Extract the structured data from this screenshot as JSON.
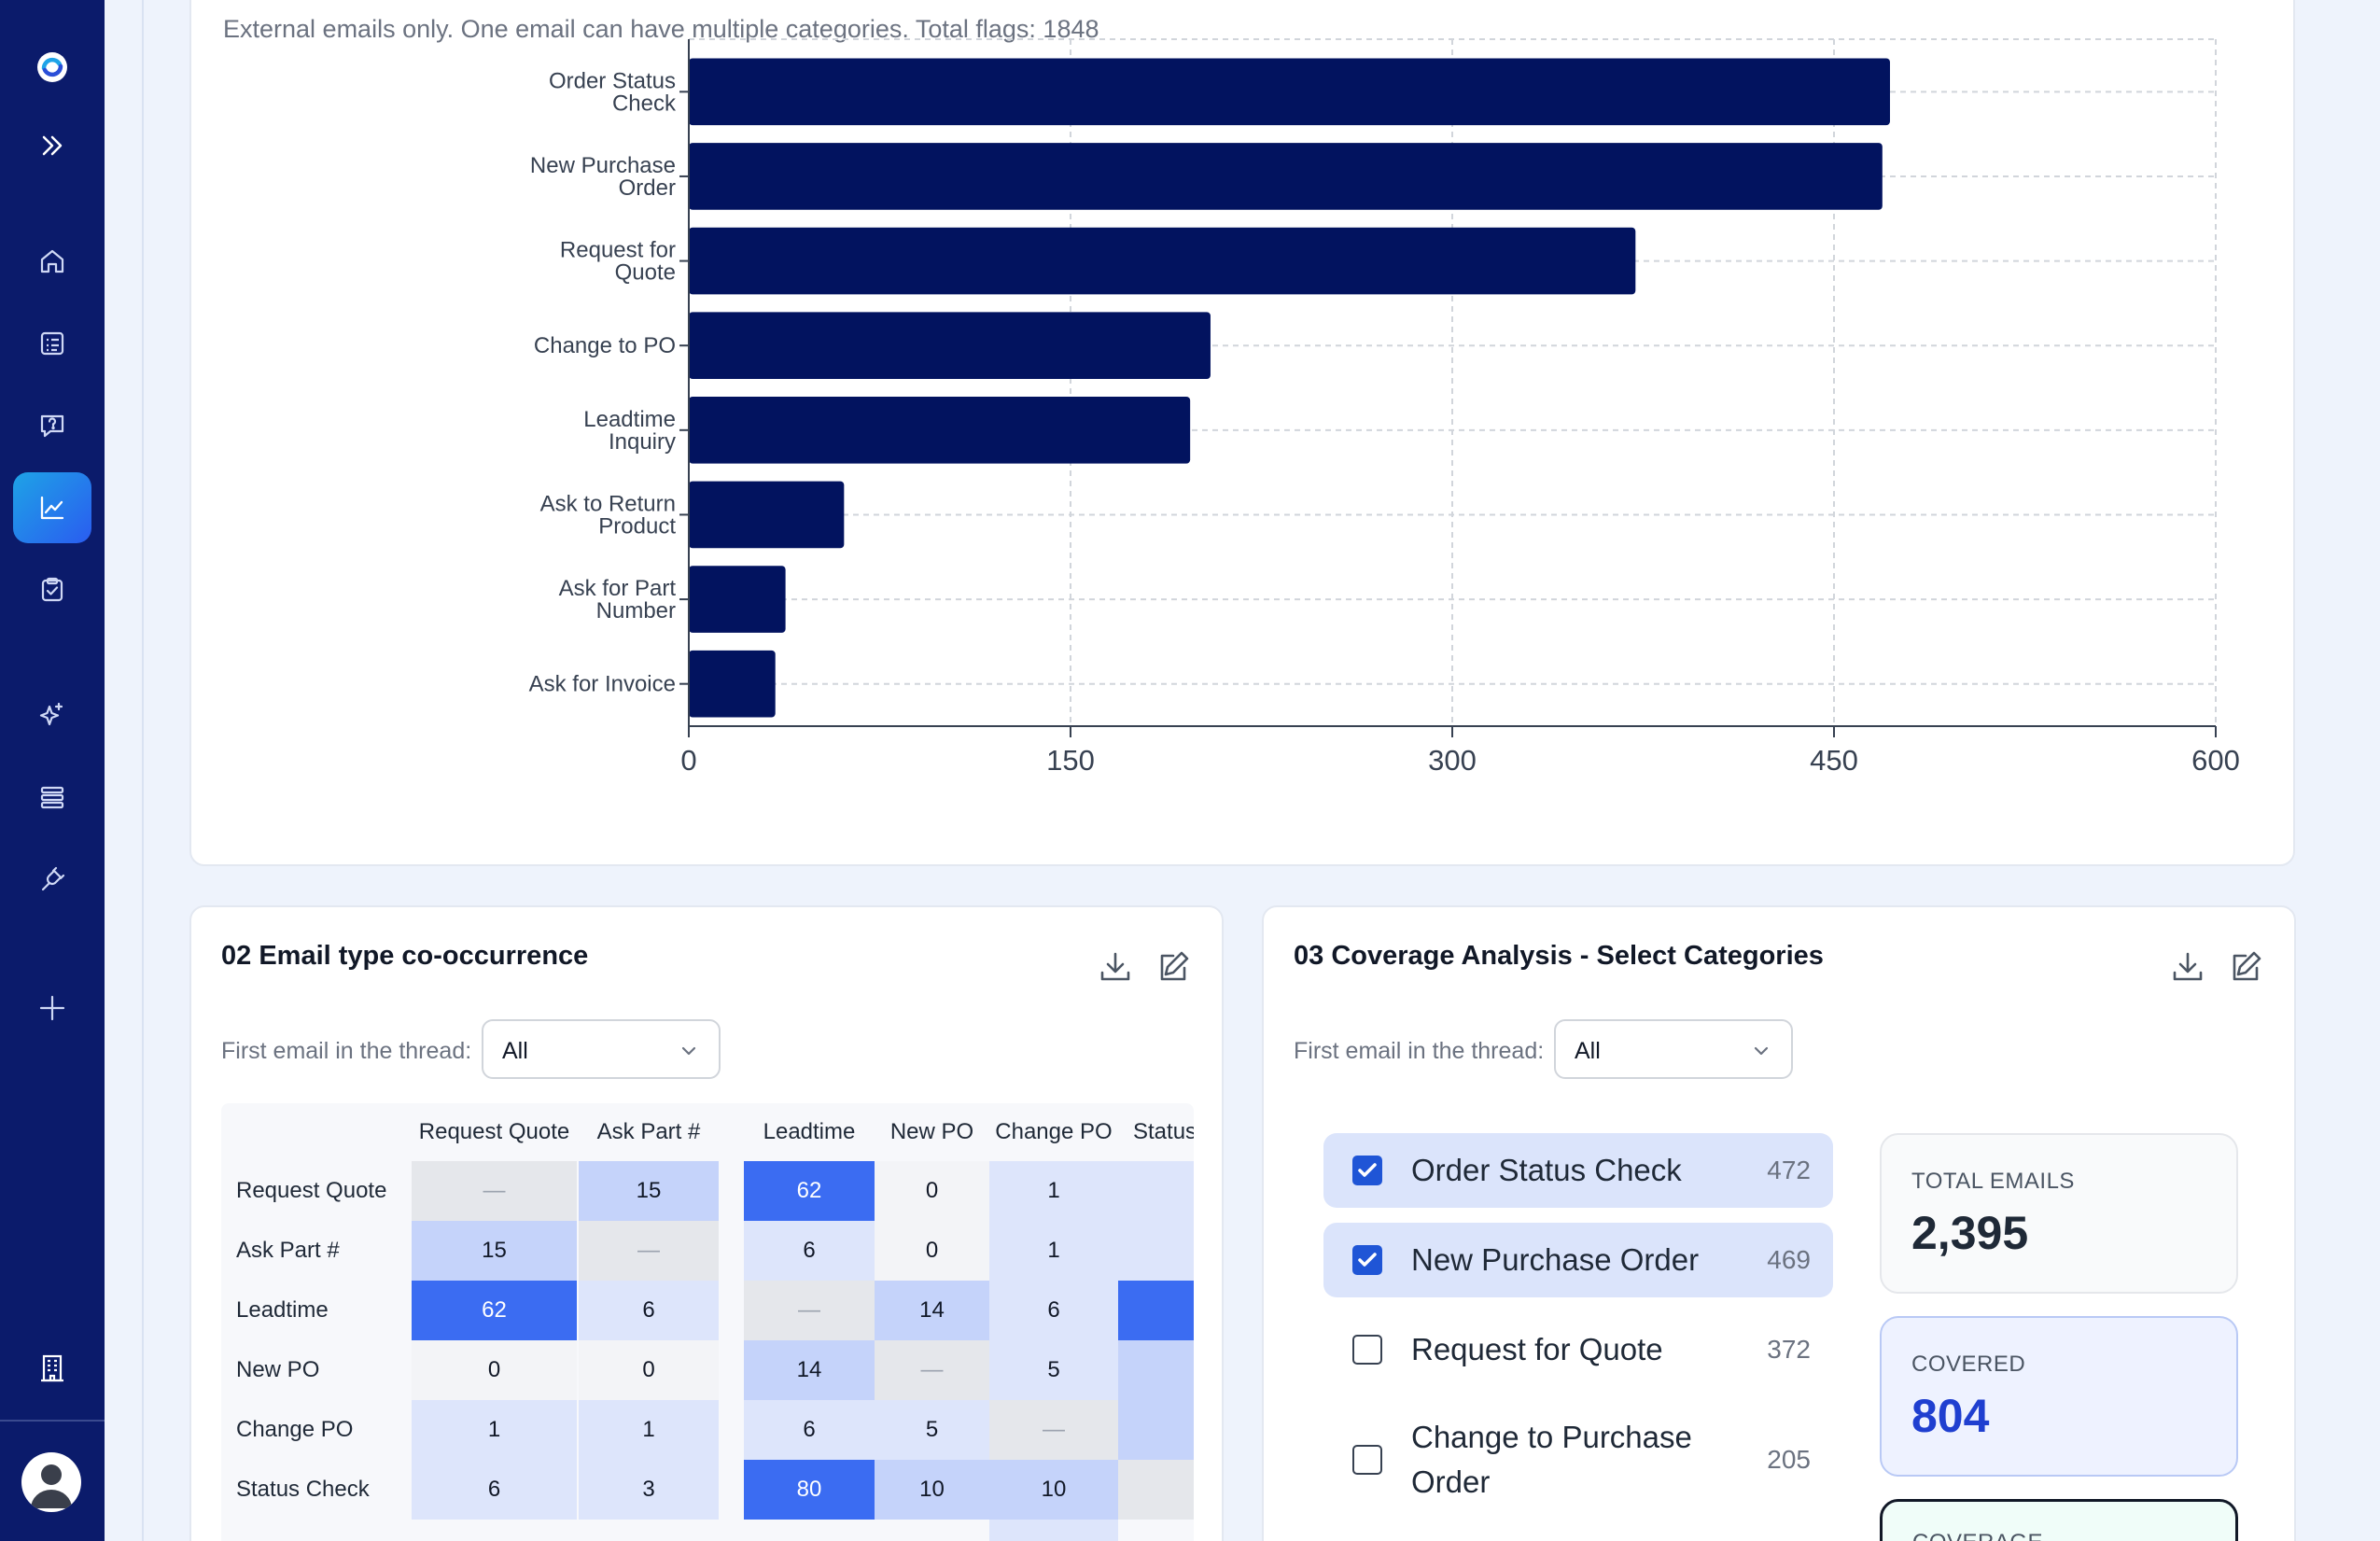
{
  "sidebar": {
    "icons": [
      "logo-icon",
      "expand-icon",
      "home-icon",
      "list-icon",
      "help-chat-icon",
      "analytics-icon",
      "clipboard-check-icon",
      "sparkle-icon",
      "stack-icon",
      "plug-icon",
      "plus-icon",
      "building-icon"
    ],
    "active": "analytics-icon"
  },
  "top_card": {
    "subtitle": "External emails only. One email can have multiple categories. Total flags: 1848"
  },
  "chart_data": {
    "type": "bar",
    "orientation": "horizontal",
    "categories": [
      [
        "Order Status",
        "Check"
      ],
      [
        "New Purchase",
        "Order"
      ],
      [
        "Request for",
        "Quote"
      ],
      [
        "Change to PO"
      ],
      [
        "Leadtime",
        "Inquiry"
      ],
      [
        "Ask to Return",
        "Product"
      ],
      [
        "Ask for Part",
        "Number"
      ],
      [
        "Ask for Invoice"
      ]
    ],
    "values": [
      472,
      469,
      372,
      205,
      197,
      61,
      38,
      34
    ],
    "xlim": [
      0,
      600
    ],
    "xticks": [
      "0",
      "150",
      "300",
      "450",
      "600"
    ],
    "bar_color": "#02135f",
    "grid": true
  },
  "cooccurrence": {
    "title": "02 Email type co-occurrence",
    "filter_label": "First email in the thread:",
    "filter_value": "All",
    "columns": [
      "Request Quote",
      "Ask Part #",
      "Leadtime",
      "New PO",
      "Change PO",
      "Status Check"
    ],
    "rows": [
      {
        "label": "Request Quote",
        "cells": [
          "—",
          "15",
          "62",
          "0",
          "1",
          ""
        ]
      },
      {
        "label": "Ask Part #",
        "cells": [
          "15",
          "—",
          "6",
          "0",
          "1",
          ""
        ]
      },
      {
        "label": "Leadtime",
        "cells": [
          "62",
          "6",
          "—",
          "14",
          "6",
          ""
        ]
      },
      {
        "label": "New PO",
        "cells": [
          "0",
          "0",
          "14",
          "—",
          "5",
          ""
        ]
      },
      {
        "label": "Change PO",
        "cells": [
          "1",
          "1",
          "6",
          "5",
          "—",
          ""
        ]
      },
      {
        "label": "Status Check",
        "cells": [
          "6",
          "3",
          "80",
          "10",
          "10",
          ""
        ]
      }
    ],
    "colors": {
      "diag": "#e5e7eb",
      "zero": "#f3f4f7",
      "light": "#dde5fb",
      "mid": "#c5d3fa",
      "high": "#3b6cf2"
    }
  },
  "coverage": {
    "title": "03 Coverage Analysis - Select Categories",
    "filter_label": "First email in the thread:",
    "filter_value": "All",
    "items": [
      {
        "label": "Order Status Check",
        "count": "472",
        "checked": true
      },
      {
        "label": "New Purchase Order",
        "count": "469",
        "checked": true
      },
      {
        "label": "Request for Quote",
        "count": "372",
        "checked": false
      },
      {
        "label": "Change to Purchase Order",
        "count": "205",
        "checked": false
      }
    ],
    "stats": {
      "total_label": "TOTAL EMAILS",
      "total_value": "2,395",
      "covered_label": "COVERED",
      "covered_value": "804",
      "coverage_label": "COVERAGE"
    }
  }
}
